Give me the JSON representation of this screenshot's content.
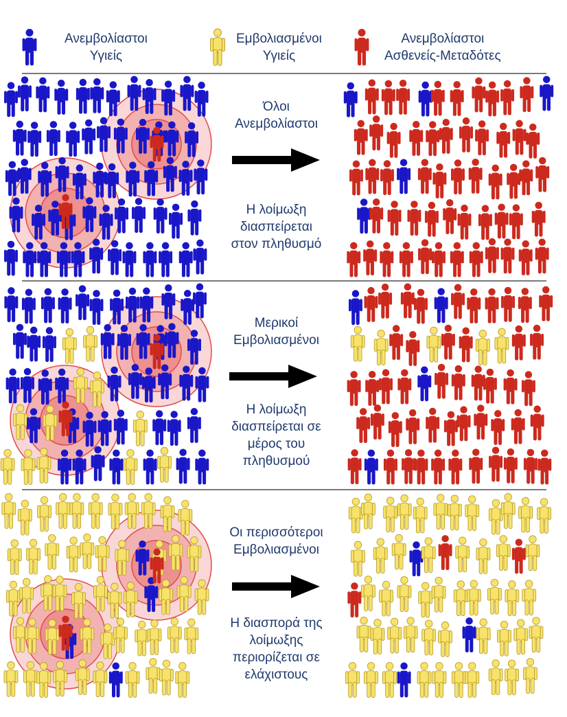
{
  "legend": [
    {
      "line1": "Ανεμβολίαστοι",
      "line2": "Υγιείς",
      "color": "#1a17c8",
      "icon": "person-icon-blue"
    },
    {
      "line1": "Εμβολιασμένοι",
      "line2": "Υγιείς",
      "color": "#f7e36b",
      "icon": "person-icon-yellow"
    },
    {
      "line1": "Ανεμβολίαστοι",
      "line2": "Ασθενείς-Μεταδότες",
      "color": "#cc2a1e",
      "icon": "person-icon-red"
    }
  ],
  "rows": [
    {
      "title": [
        "Όλοι",
        "Ανεμβολίαστοι"
      ],
      "result": [
        "Η λοίμωξη",
        "διασπείρεται",
        "στον πληθυσμό"
      ]
    },
    {
      "title": [
        "Μερικοί",
        "Εμβολιασμένοι"
      ],
      "result": [
        "Η λοίμωξη",
        "διασπείρεται σε",
        "μέρος του",
        "πληθυσμού"
      ]
    },
    {
      "title": [
        "Οι περισσότεροι",
        "Εμβολιασμένοι"
      ],
      "result": [
        "Η διασπορά της",
        "λοίμωξης",
        "περιορίζεται σε",
        "ελάχιστους"
      ]
    }
  ],
  "colors": {
    "blue": "#1a17c8",
    "yellow": "#f7e36b",
    "yellow_outline": "#b89a2a",
    "red": "#cc2a1e",
    "ring": "#e24a4a"
  }
}
